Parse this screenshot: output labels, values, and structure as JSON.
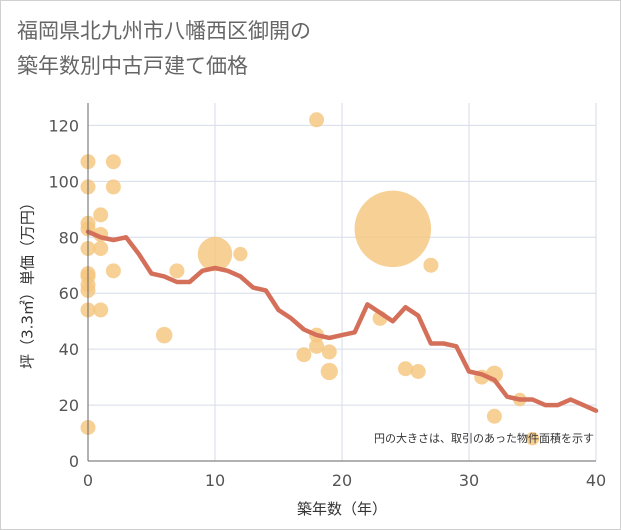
{
  "title": {
    "line1": "福岡県北九州市八幡西区御開の",
    "line2": "築年数別中古戸建て価格"
  },
  "colors": {
    "bubble": "#f5c67e",
    "line": "#d4705a",
    "grid": "#d6dde8",
    "axis": "#666666"
  },
  "chart_data": {
    "type": "scatter",
    "xlabel": "築年数（年）",
    "ylabel": "坪（3.3㎡）単価（万円）",
    "xlim": [
      0,
      40
    ],
    "ylim": [
      0,
      128
    ],
    "xticks": [
      "0",
      "10",
      "20",
      "30",
      "40"
    ],
    "yticks": [
      "0",
      "20",
      "40",
      "60",
      "80",
      "100",
      "120"
    ],
    "note": "円の大きさは、取引のあった物件面積を示す",
    "bubbles": [
      {
        "x": 0,
        "y": 107,
        "r": 1
      },
      {
        "x": 0,
        "y": 98,
        "r": 1
      },
      {
        "x": 0,
        "y": 85,
        "r": 1
      },
      {
        "x": 0,
        "y": 83,
        "r": 1
      },
      {
        "x": 0,
        "y": 76,
        "r": 1
      },
      {
        "x": 0,
        "y": 67,
        "r": 1
      },
      {
        "x": 0,
        "y": 66,
        "r": 1
      },
      {
        "x": 0,
        "y": 63,
        "r": 1
      },
      {
        "x": 0,
        "y": 61,
        "r": 1
      },
      {
        "x": 0,
        "y": 54,
        "r": 1
      },
      {
        "x": 0,
        "y": 12,
        "r": 1
      },
      {
        "x": 1,
        "y": 88,
        "r": 1
      },
      {
        "x": 1,
        "y": 81,
        "r": 1
      },
      {
        "x": 1,
        "y": 76,
        "r": 1
      },
      {
        "x": 1,
        "y": 54,
        "r": 1
      },
      {
        "x": 2,
        "y": 107,
        "r": 1
      },
      {
        "x": 2,
        "y": 98,
        "r": 1
      },
      {
        "x": 2,
        "y": 68,
        "r": 1
      },
      {
        "x": 6,
        "y": 45,
        "r": 1.1
      },
      {
        "x": 7,
        "y": 68,
        "r": 1
      },
      {
        "x": 10,
        "y": 74,
        "r": 2.3
      },
      {
        "x": 12,
        "y": 74,
        "r": 0.95
      },
      {
        "x": 18,
        "y": 122,
        "r": 1
      },
      {
        "x": 17,
        "y": 38,
        "r": 1
      },
      {
        "x": 18,
        "y": 45,
        "r": 1
      },
      {
        "x": 18,
        "y": 41,
        "r": 1
      },
      {
        "x": 19,
        "y": 39,
        "r": 1
      },
      {
        "x": 19,
        "y": 32,
        "r": 1.15
      },
      {
        "x": 23,
        "y": 51,
        "r": 1
      },
      {
        "x": 24,
        "y": 83,
        "r": 5.1
      },
      {
        "x": 25,
        "y": 33,
        "r": 1
      },
      {
        "x": 26,
        "y": 32,
        "r": 1
      },
      {
        "x": 27,
        "y": 70,
        "r": 1
      },
      {
        "x": 31,
        "y": 30,
        "r": 1
      },
      {
        "x": 32,
        "y": 31,
        "r": 1.15
      },
      {
        "x": 32,
        "y": 16,
        "r": 1
      },
      {
        "x": 34,
        "y": 22,
        "r": 0.9
      },
      {
        "x": 35,
        "y": 8,
        "r": 0.9
      }
    ],
    "trend": {
      "x": [
        0,
        1,
        2,
        3,
        4,
        5,
        6,
        7,
        8,
        9,
        10,
        11,
        12,
        13,
        14,
        15,
        16,
        17,
        18,
        19,
        20,
        21,
        22,
        23,
        24,
        25,
        26,
        27,
        28,
        29,
        30,
        31,
        32,
        33,
        34,
        35,
        36,
        37,
        38,
        39,
        40
      ],
      "y": [
        82,
        80,
        79,
        80,
        74,
        67,
        66,
        64,
        64,
        68,
        69,
        68,
        66,
        62,
        61,
        54,
        51,
        47,
        45,
        44,
        45,
        46,
        56,
        53,
        50,
        55,
        52,
        42,
        42,
        41,
        32,
        31,
        29,
        23,
        22,
        22,
        20,
        20,
        22,
        20,
        18
      ]
    }
  }
}
